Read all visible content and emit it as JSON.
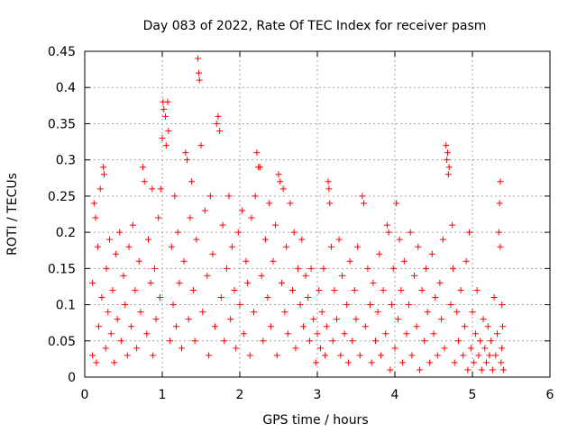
{
  "chart_data": {
    "type": "scatter",
    "title": "Day 083 of 2022, Rate Of TEC Index for receiver pasm",
    "xlabel": "GPS time / hours",
    "ylabel": "ROTI / TECUs",
    "xlim": [
      0,
      6
    ],
    "ylim": [
      0,
      0.45
    ],
    "x_ticks": [
      0,
      1,
      2,
      3,
      4,
      5,
      6
    ],
    "y_ticks": [
      0,
      0.05,
      0.1,
      0.15,
      0.2,
      0.25,
      0.3,
      0.35,
      0.4,
      0.45
    ],
    "x_tick_labels": [
      "0",
      "1",
      "2",
      "3",
      "4",
      "5",
      "6"
    ],
    "y_tick_labels": [
      "0",
      "0.05",
      "0.1",
      "0.15",
      "0.2",
      "0.25",
      "0.3",
      "0.35",
      "0.4",
      "0.45"
    ],
    "grid": true,
    "marker": "plus",
    "marker_color": "#ff0000",
    "series": [
      {
        "color": "#ff0000",
        "points": [
          [
            0.1,
            0.03
          ],
          [
            0.1,
            0.13
          ],
          [
            0.12,
            0.24
          ],
          [
            0.14,
            0.22
          ],
          [
            0.15,
            0.02
          ],
          [
            0.17,
            0.18
          ],
          [
            0.18,
            0.07
          ],
          [
            0.2,
            0.26
          ],
          [
            0.22,
            0.11
          ],
          [
            0.24,
            0.29
          ],
          [
            0.25,
            0.28
          ],
          [
            0.27,
            0.04
          ],
          [
            0.28,
            0.15
          ],
          [
            0.3,
            0.09
          ],
          [
            0.32,
            0.19
          ],
          [
            0.34,
            0.06
          ],
          [
            0.36,
            0.12
          ],
          [
            0.38,
            0.02
          ],
          [
            0.4,
            0.17
          ],
          [
            0.42,
            0.08
          ],
          [
            0.45,
            0.2
          ],
          [
            0.47,
            0.05
          ],
          [
            0.5,
            0.14
          ],
          [
            0.52,
            0.1
          ],
          [
            0.55,
            0.03
          ],
          [
            0.57,
            0.18
          ],
          [
            0.6,
            0.07
          ],
          [
            0.62,
            0.21
          ],
          [
            0.65,
            0.12
          ],
          [
            0.67,
            0.04
          ],
          [
            0.7,
            0.16
          ],
          [
            0.72,
            0.09
          ],
          [
            0.75,
            0.29
          ],
          [
            0.77,
            0.27
          ],
          [
            0.8,
            0.06
          ],
          [
            0.82,
            0.19
          ],
          [
            0.85,
            0.13
          ],
          [
            0.87,
            0.26
          ],
          [
            0.88,
            0.03
          ],
          [
            0.9,
            0.15
          ],
          [
            0.92,
            0.08
          ],
          [
            0.95,
            0.22
          ],
          [
            0.97,
            0.11
          ],
          [
            0.98,
            0.26
          ],
          [
            1.0,
            0.33
          ],
          [
            1.01,
            0.38
          ],
          [
            1.02,
            0.37
          ],
          [
            1.04,
            0.36
          ],
          [
            1.05,
            0.32
          ],
          [
            1.07,
            0.38
          ],
          [
            1.08,
            0.34
          ],
          [
            1.1,
            0.05
          ],
          [
            1.12,
            0.18
          ],
          [
            1.14,
            0.1
          ],
          [
            1.16,
            0.25
          ],
          [
            1.18,
            0.07
          ],
          [
            1.2,
            0.2
          ],
          [
            1.22,
            0.13
          ],
          [
            1.25,
            0.04
          ],
          [
            1.28,
            0.16
          ],
          [
            1.3,
            0.31
          ],
          [
            1.32,
            0.3
          ],
          [
            1.34,
            0.08
          ],
          [
            1.36,
            0.22
          ],
          [
            1.38,
            0.27
          ],
          [
            1.4,
            0.12
          ],
          [
            1.42,
            0.05
          ],
          [
            1.44,
            0.19
          ],
          [
            1.46,
            0.44
          ],
          [
            1.47,
            0.42
          ],
          [
            1.48,
            0.41
          ],
          [
            1.5,
            0.32
          ],
          [
            1.52,
            0.09
          ],
          [
            1.55,
            0.23
          ],
          [
            1.58,
            0.14
          ],
          [
            1.6,
            0.03
          ],
          [
            1.62,
            0.25
          ],
          [
            1.65,
            0.17
          ],
          [
            1.68,
            0.07
          ],
          [
            1.7,
            0.35
          ],
          [
            1.72,
            0.36
          ],
          [
            1.74,
            0.34
          ],
          [
            1.76,
            0.11
          ],
          [
            1.78,
            0.21
          ],
          [
            1.8,
            0.05
          ],
          [
            1.83,
            0.15
          ],
          [
            1.86,
            0.25
          ],
          [
            1.88,
            0.08
          ],
          [
            1.9,
            0.18
          ],
          [
            1.93,
            0.12
          ],
          [
            1.95,
            0.04
          ],
          [
            1.98,
            0.2
          ],
          [
            2.0,
            0.1
          ],
          [
            2.03,
            0.23
          ],
          [
            2.05,
            0.06
          ],
          [
            2.08,
            0.16
          ],
          [
            2.1,
            0.13
          ],
          [
            2.13,
            0.03
          ],
          [
            2.15,
            0.22
          ],
          [
            2.18,
            0.09
          ],
          [
            2.2,
            0.25
          ],
          [
            2.22,
            0.31
          ],
          [
            2.24,
            0.29
          ],
          [
            2.26,
            0.29
          ],
          [
            2.28,
            0.14
          ],
          [
            2.3,
            0.05
          ],
          [
            2.33,
            0.19
          ],
          [
            2.36,
            0.11
          ],
          [
            2.38,
            0.24
          ],
          [
            2.4,
            0.07
          ],
          [
            2.43,
            0.16
          ],
          [
            2.46,
            0.21
          ],
          [
            2.48,
            0.03
          ],
          [
            2.5,
            0.28
          ],
          [
            2.52,
            0.27
          ],
          [
            2.54,
            0.13
          ],
          [
            2.56,
            0.26
          ],
          [
            2.58,
            0.09
          ],
          [
            2.6,
            0.18
          ],
          [
            2.62,
            0.06
          ],
          [
            2.65,
            0.24
          ],
          [
            2.68,
            0.12
          ],
          [
            2.7,
            0.2
          ],
          [
            2.72,
            0.04
          ],
          [
            2.75,
            0.15
          ],
          [
            2.78,
            0.1
          ],
          [
            2.8,
            0.19
          ],
          [
            2.82,
            0.07
          ],
          [
            2.85,
            0.14
          ],
          [
            2.88,
            0.11
          ],
          [
            2.9,
            0.05
          ],
          [
            2.92,
            0.15
          ],
          [
            2.95,
            0.08
          ],
          [
            2.98,
            0.02
          ],
          [
            3.0,
            0.06
          ],
          [
            3.02,
            0.12
          ],
          [
            3.04,
            0.04
          ],
          [
            3.06,
            0.09
          ],
          [
            3.08,
            0.15
          ],
          [
            3.1,
            0.03
          ],
          [
            3.12,
            0.07
          ],
          [
            3.14,
            0.27
          ],
          [
            3.15,
            0.26
          ],
          [
            3.16,
            0.24
          ],
          [
            3.18,
            0.18
          ],
          [
            3.2,
            0.05
          ],
          [
            3.22,
            0.12
          ],
          [
            3.25,
            0.08
          ],
          [
            3.28,
            0.19
          ],
          [
            3.3,
            0.03
          ],
          [
            3.32,
            0.14
          ],
          [
            3.35,
            0.06
          ],
          [
            3.38,
            0.1
          ],
          [
            3.4,
            0.02
          ],
          [
            3.42,
            0.16
          ],
          [
            3.45,
            0.05
          ],
          [
            3.48,
            0.12
          ],
          [
            3.5,
            0.08
          ],
          [
            3.52,
            0.18
          ],
          [
            3.55,
            0.03
          ],
          [
            3.58,
            0.25
          ],
          [
            3.6,
            0.24
          ],
          [
            3.62,
            0.07
          ],
          [
            3.65,
            0.15
          ],
          [
            3.68,
            0.1
          ],
          [
            3.7,
            0.02
          ],
          [
            3.72,
            0.13
          ],
          [
            3.75,
            0.05
          ],
          [
            3.78,
            0.09
          ],
          [
            3.8,
            0.17
          ],
          [
            3.82,
            0.03
          ],
          [
            3.85,
            0.12
          ],
          [
            3.88,
            0.06
          ],
          [
            3.9,
            0.21
          ],
          [
            3.92,
            0.2
          ],
          [
            3.94,
            0.01
          ],
          [
            3.96,
            0.1
          ],
          [
            3.98,
            0.15
          ],
          [
            4.0,
            0.04
          ],
          [
            4.02,
            0.24
          ],
          [
            4.04,
            0.08
          ],
          [
            4.06,
            0.19
          ],
          [
            4.08,
            0.12
          ],
          [
            4.1,
            0.02
          ],
          [
            4.12,
            0.16
          ],
          [
            4.15,
            0.06
          ],
          [
            4.18,
            0.1
          ],
          [
            4.2,
            0.2
          ],
          [
            4.22,
            0.03
          ],
          [
            4.25,
            0.14
          ],
          [
            4.28,
            0.07
          ],
          [
            4.3,
            0.18
          ],
          [
            4.32,
            0.01
          ],
          [
            4.35,
            0.12
          ],
          [
            4.38,
            0.05
          ],
          [
            4.4,
            0.15
          ],
          [
            4.42,
            0.09
          ],
          [
            4.45,
            0.02
          ],
          [
            4.48,
            0.17
          ],
          [
            4.5,
            0.06
          ],
          [
            4.52,
            0.11
          ],
          [
            4.55,
            0.03
          ],
          [
            4.58,
            0.13
          ],
          [
            4.6,
            0.08
          ],
          [
            4.62,
            0.19
          ],
          [
            4.64,
            0.04
          ],
          [
            4.66,
            0.32
          ],
          [
            4.67,
            0.3
          ],
          [
            4.68,
            0.31
          ],
          [
            4.69,
            0.28
          ],
          [
            4.7,
            0.29
          ],
          [
            4.72,
            0.1
          ],
          [
            4.74,
            0.21
          ],
          [
            4.75,
            0.15
          ],
          [
            4.77,
            0.02
          ],
          [
            4.8,
            0.09
          ],
          [
            4.82,
            0.05
          ],
          [
            4.85,
            0.12
          ],
          [
            4.88,
            0.03
          ],
          [
            4.9,
            0.07
          ],
          [
            4.92,
            0.16
          ],
          [
            4.94,
            0.01
          ],
          [
            4.96,
            0.2
          ],
          [
            4.98,
            0.04
          ],
          [
            5.0,
            0.09
          ],
          [
            5.02,
            0.02
          ],
          [
            5.04,
            0.06
          ],
          [
            5.06,
            0.12
          ],
          [
            5.08,
            0.03
          ],
          [
            5.1,
            0.05
          ],
          [
            5.12,
            0.01
          ],
          [
            5.14,
            0.08
          ],
          [
            5.16,
            0.04
          ],
          [
            5.18,
            0.02
          ],
          [
            5.2,
            0.07
          ],
          [
            5.22,
            0.03
          ],
          [
            5.24,
            0.05
          ],
          [
            5.26,
            0.01
          ],
          [
            5.28,
            0.11
          ],
          [
            5.3,
            0.03
          ],
          [
            5.32,
            0.06
          ],
          [
            5.34,
            0.2
          ],
          [
            5.35,
            0.24
          ],
          [
            5.36,
            0.27
          ],
          [
            5.37,
            0.02
          ],
          [
            5.38,
            0.04
          ],
          [
            5.39,
            0.07
          ],
          [
            5.4,
            0.01
          ],
          [
            5.38,
            0.1
          ],
          [
            5.36,
            0.18
          ]
        ]
      }
    ]
  }
}
